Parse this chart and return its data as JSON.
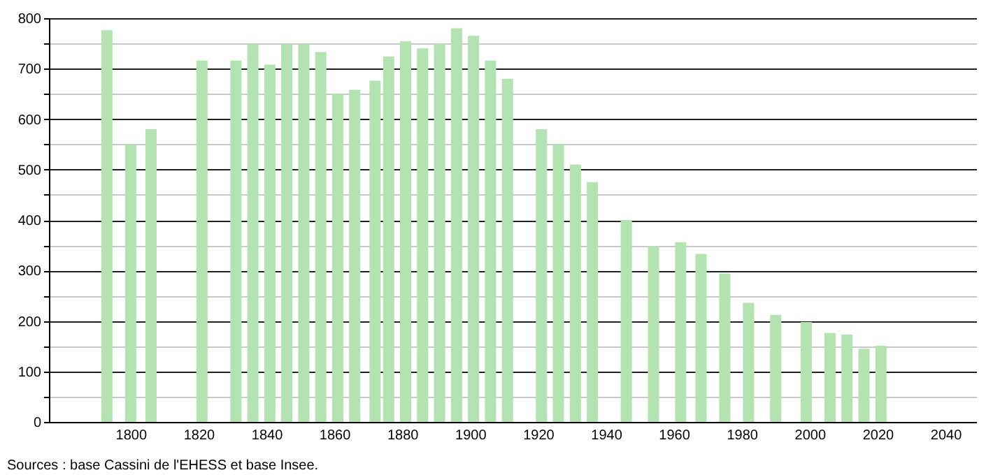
{
  "chart_data": {
    "type": "bar",
    "x": [
      1793,
      1800,
      1806,
      1821,
      1831,
      1836,
      1841,
      1846,
      1851,
      1856,
      1861,
      1866,
      1872,
      1876,
      1881,
      1886,
      1891,
      1896,
      1901,
      1906,
      1911,
      1921,
      1926,
      1931,
      1936,
      1946,
      1954,
      1962,
      1968,
      1975,
      1982,
      1990,
      1999,
      2006,
      2011,
      2016,
      2021
    ],
    "values": [
      776,
      550,
      580,
      716,
      716,
      748,
      708,
      748,
      748,
      733,
      650,
      658,
      676,
      724,
      754,
      740,
      750,
      780,
      765,
      716,
      680,
      580,
      550,
      510,
      475,
      400,
      348,
      356,
      333,
      294,
      236,
      212,
      198,
      176,
      173,
      145,
      151
    ],
    "color": "#b3e3b0",
    "xlim": [
      1778,
      2047
    ],
    "xticks": [
      1800,
      1820,
      1840,
      1860,
      1880,
      1900,
      1920,
      1940,
      1960,
      1980,
      2000,
      2020,
      2040
    ],
    "ylim": [
      0,
      800
    ],
    "yticks": [
      0,
      {
        "value": 50,
        "label": null
      },
      100,
      {
        "value": 150,
        "label": null
      },
      200,
      {
        "value": 250,
        "label": null
      },
      300,
      {
        "value": 350,
        "label": null
      },
      400,
      {
        "value": 450,
        "label": null
      },
      500,
      {
        "value": 550,
        "label": null
      },
      600,
      {
        "value": 650,
        "label": null
      },
      700,
      {
        "value": 750,
        "label": null
      },
      800
    ],
    "grid": "y",
    "annotations": [
      "Sources : base Cassini de l'EHESS et base Insee."
    ]
  }
}
